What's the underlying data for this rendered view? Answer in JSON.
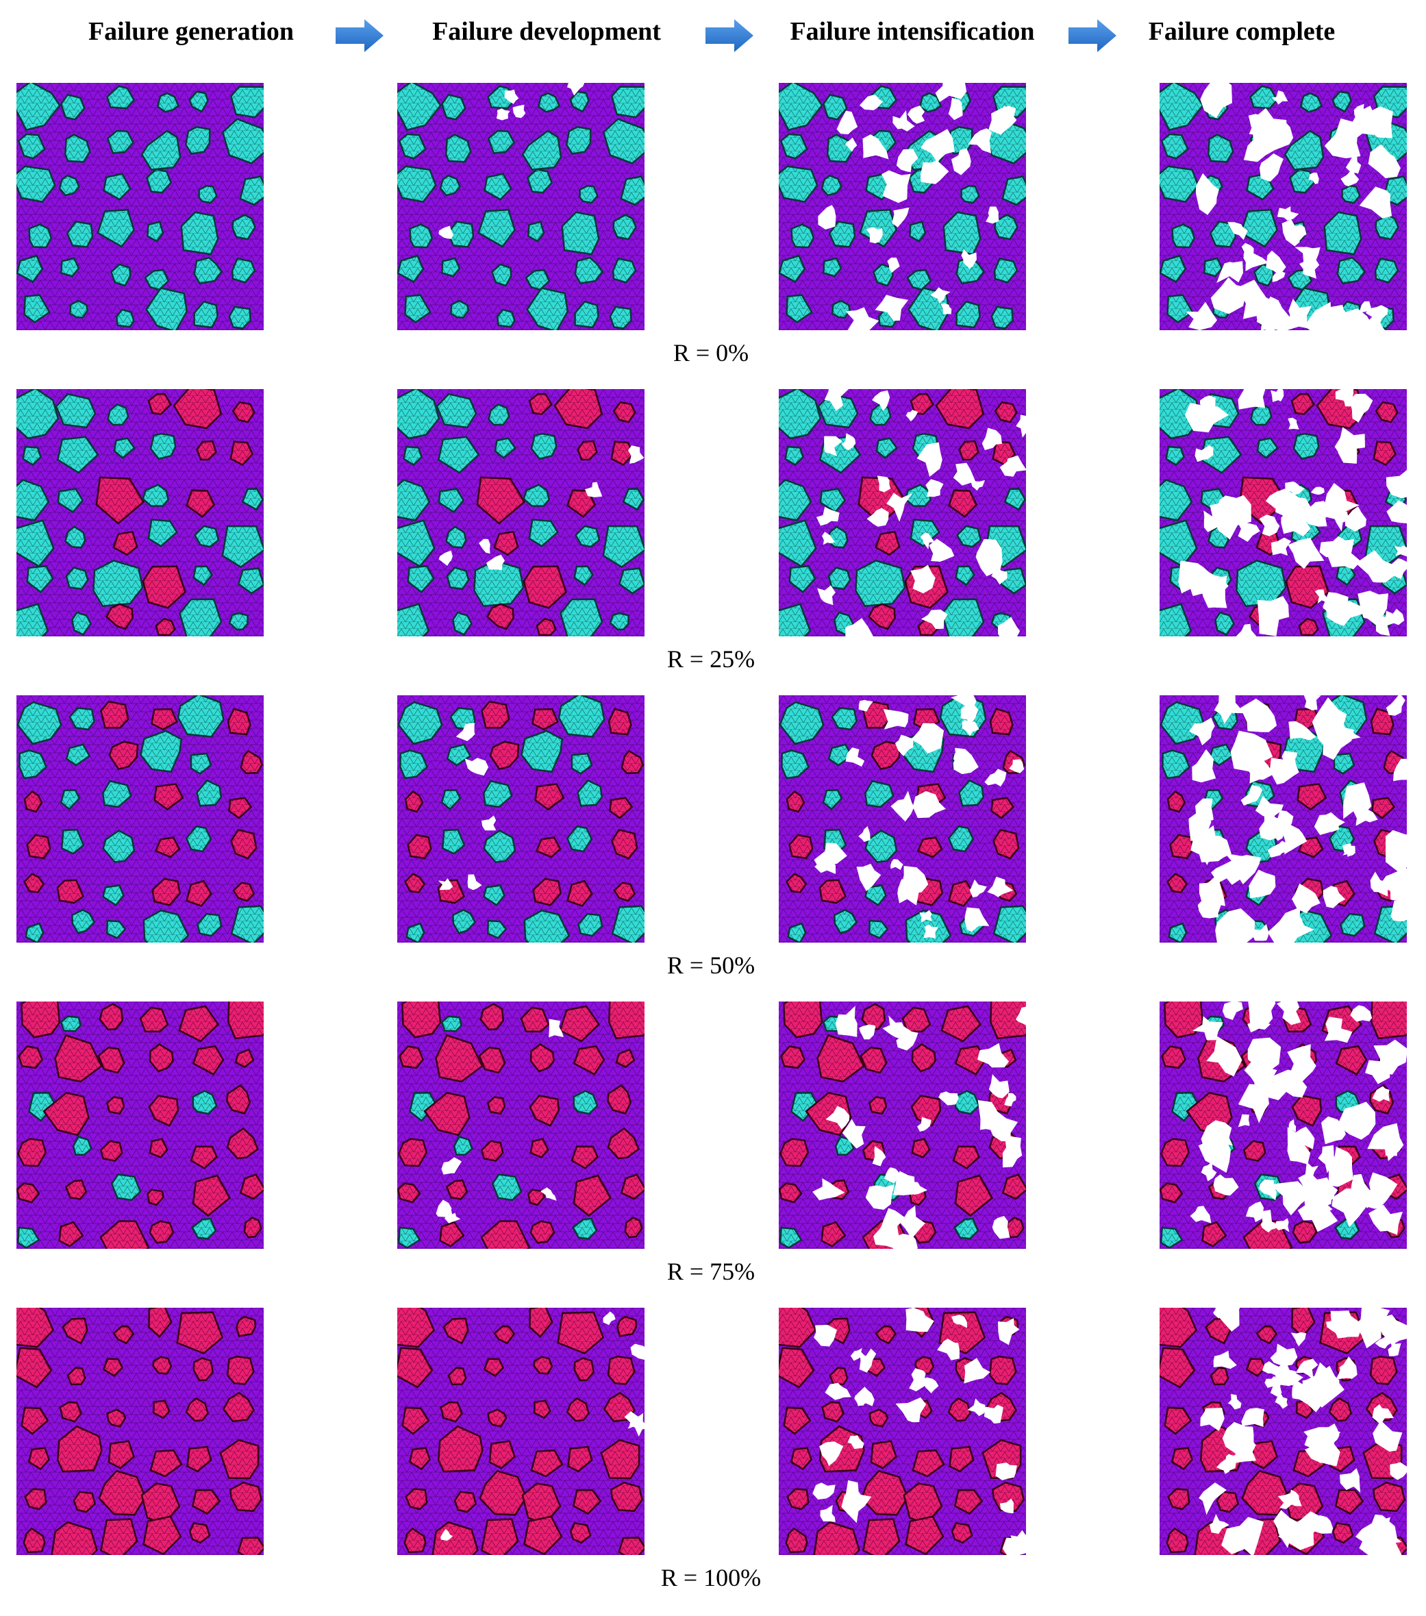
{
  "header": {
    "stages": [
      "Failure generation",
      "Failure development",
      "Failure intensification",
      "Failure complete"
    ]
  },
  "rows": [
    {
      "label": "R = 0%"
    },
    {
      "label": "R = 25%"
    },
    {
      "label": "R = 50%"
    },
    {
      "label": "R = 75%"
    },
    {
      "label": "R = 100%"
    }
  ]
}
